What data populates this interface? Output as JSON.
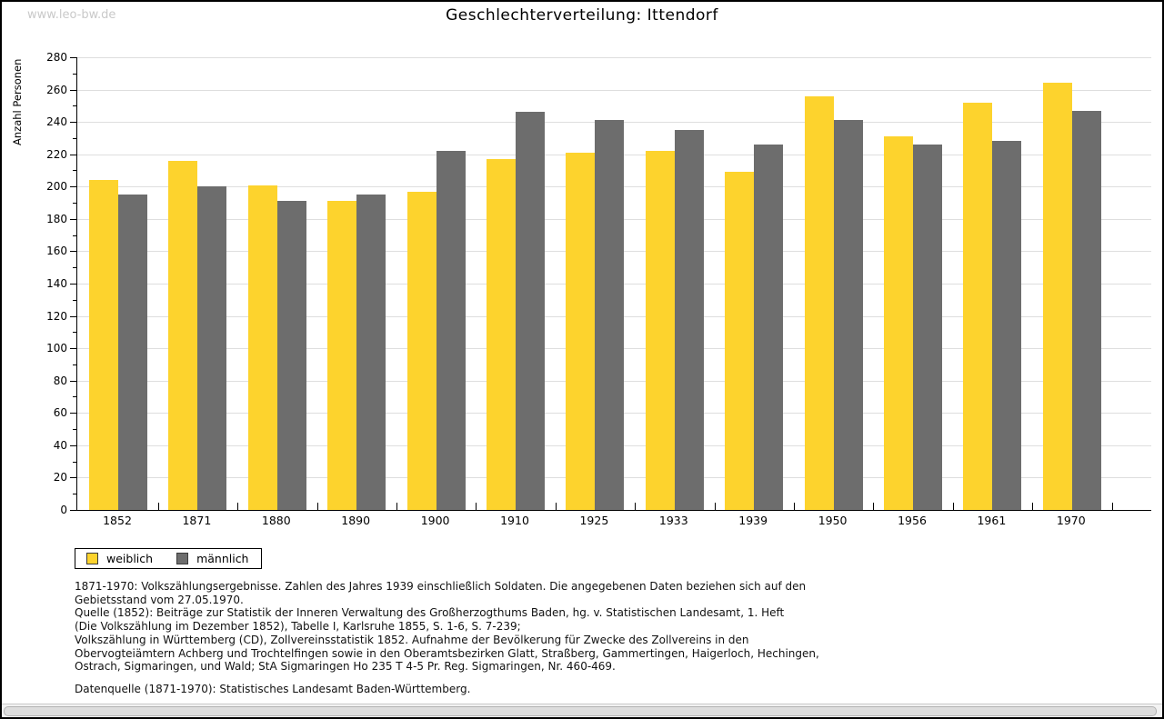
{
  "watermark": "www.leo-bw.de",
  "title": "Geschlechterverteilung: Ittendorf",
  "chart_data": {
    "type": "bar",
    "title": "Geschlechterverteilung: Ittendorf",
    "xlabel": "",
    "ylabel": "Anzahl Personen",
    "ylim": [
      0,
      280
    ],
    "ytick_step": 20,
    "minor_tick_step": 10,
    "grid": true,
    "legend_position": "bottom-left",
    "categories": [
      "1852",
      "1871",
      "1880",
      "1890",
      "1900",
      "1910",
      "1925",
      "1933",
      "1939",
      "1950",
      "1956",
      "1961",
      "1970"
    ],
    "series": [
      {
        "name": "weiblich",
        "color": "#FDD32D",
        "values": [
          204,
          216,
          201,
          191,
          197,
          217,
          221,
          222,
          209,
          256,
          231,
          252,
          264
        ]
      },
      {
        "name": "männlich",
        "color": "#6D6D6D",
        "values": [
          195,
          200,
          191,
          195,
          222,
          246,
          241,
          235,
          226,
          241,
          226,
          228,
          247
        ]
      }
    ],
    "gridline_color": "#DEDEDE",
    "axis_color": "#000000"
  },
  "legend": {
    "items": [
      {
        "label": "weiblich",
        "color": "#FDD32D"
      },
      {
        "label": "männlich",
        "color": "#6D6D6D"
      }
    ]
  },
  "footnotes": {
    "lines": [
      "1871-1970: Volkszählungsergebnisse. Zahlen des Jahres 1939 einschließlich Soldaten. Die angegebenen Daten beziehen sich auf den",
      "Gebietsstand vom 27.05.1970.",
      "Quelle (1852): Beiträge zur Statistik der Inneren Verwaltung des Großherzogthums Baden, hg. v. Statistischen Landesamt, 1. Heft",
      "(Die Volkszählung im Dezember 1852), Tabelle I, Karlsruhe 1855, S. 1-6, S. 7-239;",
      "Volkszählung in Württemberg (CD), Zollvereinsstatistik 1852. Aufnahme der Bevölkerung für Zwecke des Zollvereins in den",
      "Obervogteiämtern Achberg und Trochtelfingen sowie in den Oberamtsbezirken Glatt, Straßberg, Gammertingen, Haigerloch, Hechingen,",
      "Ostrach, Sigmaringen, und Wald; StA Sigmaringen Ho 235 T 4-5 Pr. Reg. Sigmaringen, Nr. 460-469."
    ],
    "datasource": "Datenquelle (1871-1970): Statistisches Landesamt Baden-Württemberg."
  }
}
